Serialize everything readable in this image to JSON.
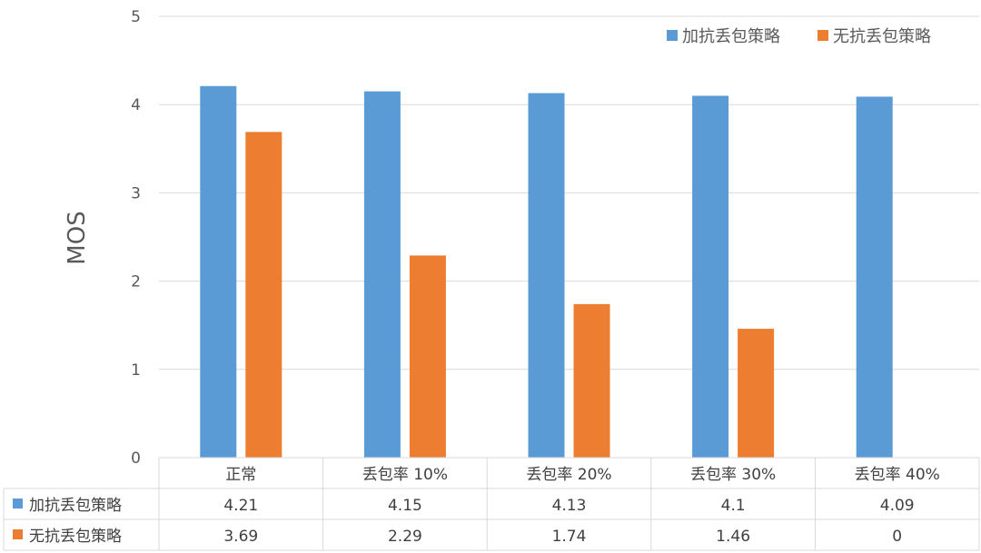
{
  "chart_data": {
    "type": "bar",
    "ylabel": "MOS",
    "ylim": [
      0,
      5
    ],
    "yticks": [
      0,
      1,
      2,
      3,
      4,
      5
    ],
    "grid": true,
    "legend_position": "top-right",
    "categories": [
      "正常",
      "丢包率 10%",
      "丢包率 20%",
      "丢包率 30%",
      "丢包率 40%"
    ],
    "series": [
      {
        "name": "加抗丢包策略",
        "color": "#5B9BD5",
        "values": [
          4.21,
          4.15,
          4.13,
          4.1,
          4.09
        ]
      },
      {
        "name": "无抗丢包策略",
        "color": "#ED7D31",
        "values": [
          3.69,
          2.29,
          1.74,
          1.46,
          0
        ]
      }
    ],
    "data_table": true
  }
}
